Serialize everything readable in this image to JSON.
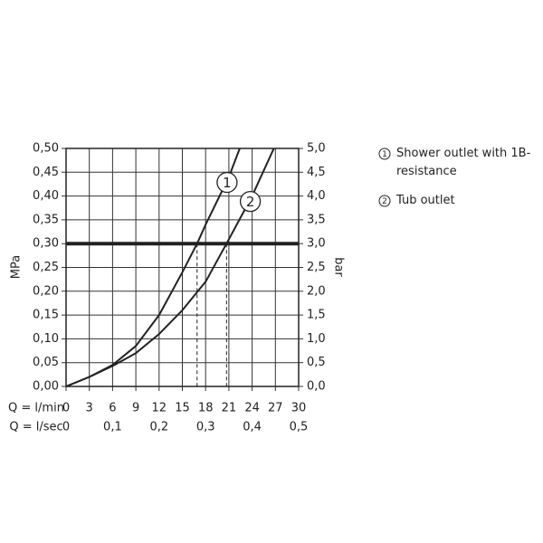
{
  "chart_data": {
    "type": "line",
    "xlabel": "Q = l/min",
    "x2label": "Q = l/sec",
    "ylabel": "MPa",
    "y2label": "bar",
    "xlim": [
      0,
      30
    ],
    "xticks": [
      0,
      3,
      6,
      9,
      12,
      15,
      18,
      21,
      24,
      27,
      30
    ],
    "x2lim": [
      0,
      0.5
    ],
    "x2ticks": [
      0,
      {
        "value": 0.1,
        "label": "0,1"
      },
      {
        "value": 0.2,
        "label": "0,2"
      },
      {
        "value": 0.3,
        "label": "0,3"
      },
      {
        "value": 0.4,
        "label": "0,4"
      },
      {
        "value": 0.5,
        "label": "0,5"
      }
    ],
    "ylim": [
      0,
      0.5
    ],
    "yticks": [
      {
        "value": 0,
        "label": "0,00"
      },
      {
        "value": 0.05,
        "label": "0,05"
      },
      {
        "value": 0.1,
        "label": "0,10"
      },
      {
        "value": 0.15,
        "label": "0,15"
      },
      {
        "value": 0.2,
        "label": "0,20"
      },
      {
        "value": 0.25,
        "label": "0,25"
      },
      {
        "value": 0.3,
        "label": "0,30"
      },
      {
        "value": 0.35,
        "label": "0,35"
      },
      {
        "value": 0.4,
        "label": "0,40"
      },
      {
        "value": 0.45,
        "label": "0,45"
      },
      {
        "value": 0.5,
        "label": "0,50"
      }
    ],
    "y2lim": [
      0,
      5
    ],
    "y2ticks": [
      {
        "value": 0,
        "label": "0,0"
      },
      {
        "value": 0.5,
        "label": "0,5"
      },
      {
        "value": 1,
        "label": "1,0"
      },
      {
        "value": 1.5,
        "label": "1,5"
      },
      {
        "value": 2,
        "label": "2,0"
      },
      {
        "value": 2.5,
        "label": "2,5"
      },
      {
        "value": 3,
        "label": "3,0"
      },
      {
        "value": 3.5,
        "label": "3,5"
      },
      {
        "value": 4,
        "label": "4,0"
      },
      {
        "value": 4.5,
        "label": "4,5"
      },
      {
        "value": 5,
        "label": "5,0"
      }
    ],
    "grid": true,
    "hline": 0.3,
    "vlines": [
      16.9,
      20.7
    ],
    "series": [
      {
        "name": "Shower outlet with 1B-resistance",
        "marker_label": "1",
        "color": "#222222",
        "x": [
          0,
          3,
          6,
          9,
          12,
          15,
          16.9,
          18,
          21,
          22.4
        ],
        "values": [
          0,
          0.02,
          0.045,
          0.085,
          0.15,
          0.24,
          0.3,
          0.34,
          0.44,
          0.5
        ]
      },
      {
        "name": "Tub outlet",
        "marker_label": "2",
        "color": "#222222",
        "x": [
          0,
          3,
          6,
          9,
          12,
          15,
          18,
          20.7,
          24,
          26.8
        ],
        "values": [
          0,
          0.02,
          0.043,
          0.07,
          0.11,
          0.16,
          0.22,
          0.3,
          0.4,
          0.5
        ]
      }
    ]
  }
}
